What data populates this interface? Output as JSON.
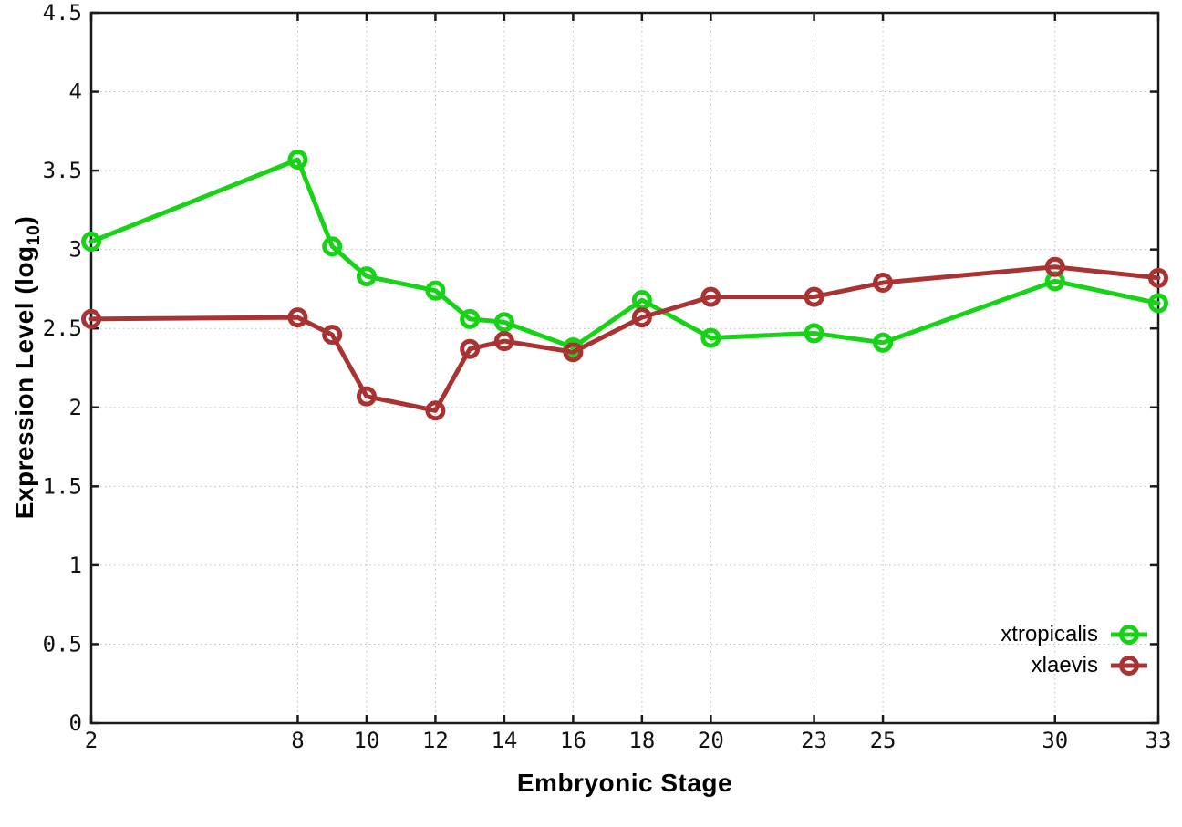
{
  "chart_data": {
    "type": "line",
    "title": "",
    "xlabel": "Embryonic Stage",
    "ylabel": "Expression Level (log10)",
    "ylabel_parts": {
      "prefix": "Expression Level (log",
      "sub": "10",
      "suffix": ")"
    },
    "x": [
      2,
      8,
      9,
      10,
      12,
      13,
      14,
      16,
      18,
      20,
      23,
      25,
      30,
      33
    ],
    "series": [
      {
        "name": "xtropicalis",
        "color": "#16d316",
        "values": [
          3.05,
          3.57,
          3.02,
          2.83,
          2.74,
          2.56,
          2.54,
          2.38,
          2.68,
          2.44,
          2.47,
          2.41,
          2.8,
          2.66
        ]
      },
      {
        "name": "xlaevis",
        "color": "#a93333",
        "values": [
          2.56,
          2.57,
          2.46,
          2.07,
          1.98,
          2.37,
          2.42,
          2.35,
          2.57,
          2.7,
          2.7,
          2.79,
          2.89,
          2.82
        ]
      }
    ],
    "xticks": [
      2,
      8,
      10,
      12,
      14,
      16,
      18,
      20,
      23,
      25,
      30,
      33
    ],
    "yticks": [
      0,
      0.5,
      1,
      1.5,
      2,
      2.5,
      3,
      3.5,
      4,
      4.5
    ],
    "xlim": [
      2,
      33
    ],
    "ylim": [
      0,
      4.5
    ],
    "grid": true,
    "legend_position": "inside-bottom-right",
    "marker": "open-circle",
    "background_color": "#ffffff",
    "axis_color": "#1a1a1a",
    "grid_color": "#bcbcbc"
  }
}
